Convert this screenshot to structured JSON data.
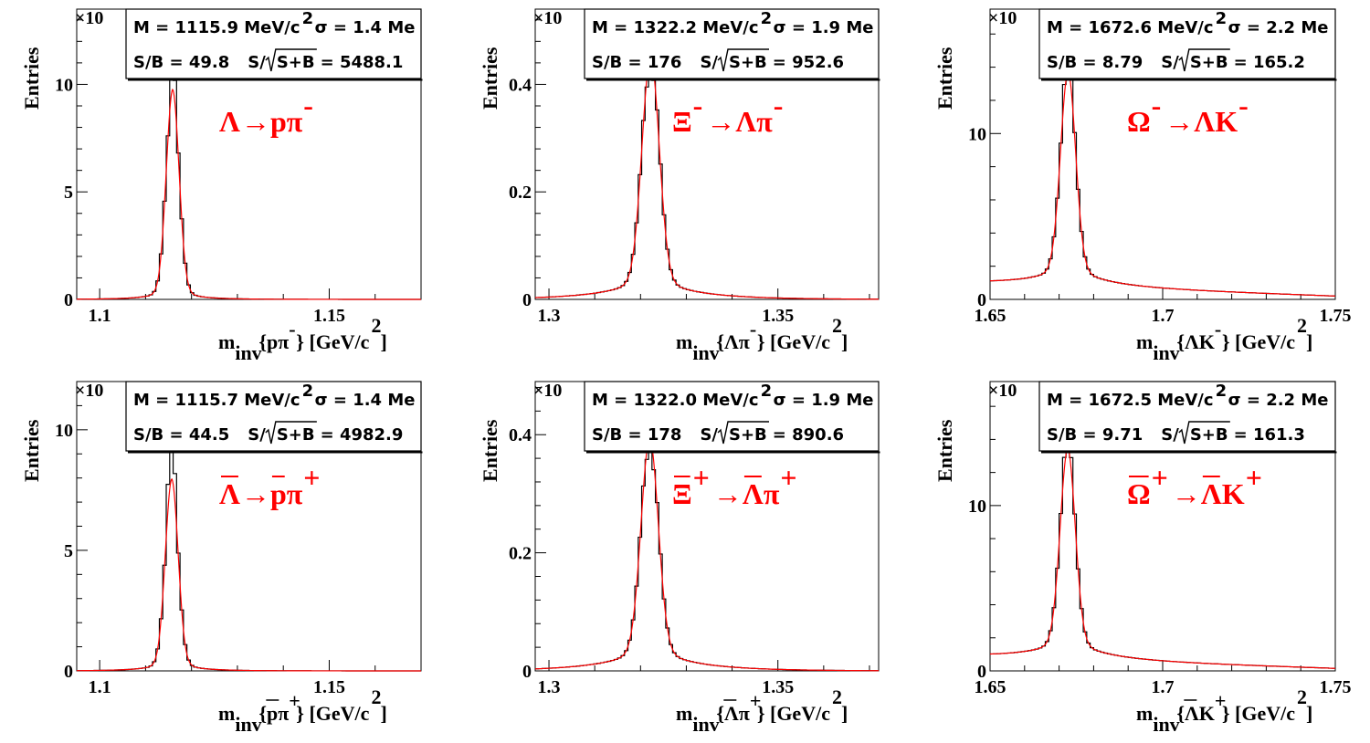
{
  "colors": {
    "fit": "#ff0000",
    "histogram": "#000000",
    "label": "#ff0000"
  },
  "chart_data": [
    {
      "type": "line",
      "y_multiplier": "×10",
      "ylabel": "Entries",
      "xlabel": {
        "main": "m",
        "sub": "inv",
        "arg": "{pπ",
        "arg_sup": "-",
        "tail": "} [GeV/c",
        "tail_sup": "2",
        "close": "]"
      },
      "decay": {
        "lhs": "Λ",
        "lhs_bar": false,
        "lhs_sup": "",
        "arrow": "→",
        "rhs1": "p",
        "rhs1_bar": false,
        "rhs2": "π",
        "rhs2_sup": "-"
      },
      "stats": {
        "mass_label": "M = 1115.9 MeV/c",
        "mass_sup": "2",
        "sigma_label": "σ = 1.4 Me",
        "sb_label": "S/B = 49.8",
        "signif_prefix": "S/",
        "signif_root": "S+B",
        "signif_value": "= 5488.1"
      },
      "xlim": [
        1.095,
        1.17
      ],
      "ylim": [
        0,
        13.5
      ],
      "xticks": [
        1.1,
        1.15
      ],
      "xtick_labels": [
        "1.1",
        "1.15"
      ],
      "yticks": [
        0,
        5,
        10
      ],
      "ytick_labels": [
        "0",
        "5",
        "10"
      ],
      "mass": 1.1159,
      "sigma": 0.0014,
      "peak": 9.1,
      "bg_start": 0.0,
      "bg_end": 0.0,
      "tail": 0.12,
      "hist_peak_ratio": 1.11
    },
    {
      "type": "line",
      "y_multiplier": "×10",
      "ylabel": "Entries",
      "xlabel": {
        "main": "m",
        "sub": "inv",
        "arg": "{Λπ",
        "arg_sup": "-",
        "tail": "} [GeV/c",
        "tail_sup": "2",
        "close": "]"
      },
      "decay": {
        "lhs": "Ξ",
        "lhs_bar": false,
        "lhs_sup": "-",
        "arrow": "→",
        "rhs1": "Λ",
        "rhs1_bar": false,
        "rhs2": "π",
        "rhs2_sup": "-"
      },
      "stats": {
        "mass_label": "M = 1322.2 MeV/c",
        "mass_sup": "2",
        "sigma_label": "σ = 1.9 Me",
        "sb_label": "S/B =  176",
        "signif_prefix": "S/",
        "signif_root": "S+B",
        "signif_value": "= 952.6"
      },
      "xlim": [
        1.297,
        1.372
      ],
      "ylim": [
        0,
        0.54
      ],
      "xticks": [
        1.3,
        1.35
      ],
      "xtick_labels": [
        "1.3",
        "1.35"
      ],
      "yticks": [
        0,
        0.2,
        0.4
      ],
      "ytick_labels": [
        "0",
        "0.2",
        "0.4"
      ],
      "mass": 1.3222,
      "sigma": 0.0019,
      "peak": 0.4,
      "bg_start": 0.0,
      "bg_end": 0.0,
      "tail": 0.03,
      "hist_peak_ratio": 0.96
    },
    {
      "type": "line",
      "y_multiplier": "×10",
      "ylabel": "Entries",
      "xlabel": {
        "main": "m",
        "sub": "inv",
        "arg": "{ΛK",
        "arg_sup": "-",
        "tail": "} [GeV/c",
        "tail_sup": "2",
        "close": "]"
      },
      "decay": {
        "lhs": "Ω",
        "lhs_bar": false,
        "lhs_sup": "-",
        "arrow": "→",
        "rhs1": "Λ",
        "rhs1_bar": false,
        "rhs2": "K",
        "rhs2_sup": "-"
      },
      "stats": {
        "mass_label": "M = 1672.6 MeV/c",
        "mass_sup": "2",
        "sigma_label": "σ = 2.2 Me",
        "sb_label": "S/B = 8.79",
        "signif_prefix": "S/",
        "signif_root": "S+B",
        "signif_value": "= 165.2"
      },
      "xlim": [
        1.65,
        1.75
      ],
      "ylim": [
        0,
        17.5
      ],
      "xticks": [
        1.65,
        1.7,
        1.75
      ],
      "xtick_labels": [
        "1.65",
        "1.7",
        "1.75"
      ],
      "yticks": [
        0,
        10
      ],
      "ytick_labels": [
        "0",
        "10"
      ],
      "mass": 1.6726,
      "sigma": 0.0022,
      "peak": 11.4,
      "bg_start": 0.95,
      "bg_end": 0.2,
      "tail": 0.9,
      "hist_peak_ratio": 1.06
    },
    {
      "type": "line",
      "y_multiplier": "×10",
      "ylabel": "Entries",
      "xlabel": {
        "main": "m",
        "sub": "inv",
        "arg": "{pπ",
        "arg_sup": "+",
        "bar_on_arg": true,
        "tail": "} [GeV/c",
        "tail_sup": "2",
        "close": "]"
      },
      "decay": {
        "lhs": "Λ",
        "lhs_bar": true,
        "lhs_sup": "",
        "arrow": "→",
        "rhs1": "p",
        "rhs1_bar": true,
        "rhs2": "π",
        "rhs2_sup": "+"
      },
      "stats": {
        "mass_label": "M = 1115.7 MeV/c",
        "mass_sup": "2",
        "sigma_label": "σ = 1.4 Me",
        "sb_label": "S/B = 44.5",
        "signif_prefix": "S/",
        "signif_root": "S+B",
        "signif_value": "= 4982.9"
      },
      "xlim": [
        1.095,
        1.17
      ],
      "ylim": [
        0,
        12.0
      ],
      "xticks": [
        1.1,
        1.15
      ],
      "xtick_labels": [
        "1.1",
        "1.15"
      ],
      "yticks": [
        0,
        5,
        10
      ],
      "ytick_labels": [
        "0",
        "5",
        "10"
      ],
      "mass": 1.1157,
      "sigma": 0.0014,
      "peak": 7.4,
      "bg_start": 0.0,
      "bg_end": 0.0,
      "tail": 0.12,
      "hist_peak_ratio": 1.16
    },
    {
      "type": "line",
      "y_multiplier": "×10",
      "ylabel": "Entries",
      "xlabel": {
        "main": "m",
        "sub": "inv",
        "arg": "{Λπ",
        "arg_sup": "+",
        "bar_on_arg": true,
        "tail": "} [GeV/c",
        "tail_sup": "2",
        "close": "]"
      },
      "decay": {
        "lhs": "Ξ",
        "lhs_bar": true,
        "lhs_sup": "+",
        "arrow": "→",
        "rhs1": "Λ",
        "rhs1_bar": true,
        "rhs2": "π",
        "rhs2_sup": "+"
      },
      "stats": {
        "mass_label": "M = 1322.0 MeV/c",
        "mass_sup": "2",
        "sigma_label": "σ = 1.9 Me",
        "sb_label": "S/B =  178",
        "signif_prefix": "S/",
        "signif_root": "S+B",
        "signif_value": "= 890.6"
      },
      "xlim": [
        1.297,
        1.372
      ],
      "ylim": [
        0,
        0.49
      ],
      "xticks": [
        1.3,
        1.35
      ],
      "xtick_labels": [
        "1.3",
        "1.35"
      ],
      "yticks": [
        0,
        0.2,
        0.4
      ],
      "ytick_labels": [
        "0",
        "0.2",
        "0.4"
      ],
      "mass": 1.322,
      "sigma": 0.0019,
      "peak": 0.345,
      "bg_start": 0.0,
      "bg_end": 0.0,
      "tail": 0.03,
      "hist_peak_ratio": 0.96
    },
    {
      "type": "line",
      "y_multiplier": "×10",
      "ylabel": "Entries",
      "xlabel": {
        "main": "m",
        "sub": "inv",
        "arg": "{ΛK",
        "arg_sup": "+",
        "bar_on_arg": true,
        "tail": "} [GeV/c",
        "tail_sup": "2",
        "close": "]"
      },
      "decay": {
        "lhs": "Ω",
        "lhs_bar": true,
        "lhs_sup": "+",
        "arrow": "→",
        "rhs1": "Λ",
        "rhs1_bar": true,
        "rhs2": "K",
        "rhs2_sup": "+"
      },
      "stats": {
        "mass_label": "M = 1672.5 MeV/c",
        "mass_sup": "2",
        "sigma_label": "σ = 2.2 Me",
        "sb_label": "S/B = 9.71",
        "signif_prefix": "S/",
        "signif_root": "S+B",
        "signif_value": "= 161.3"
      },
      "xlim": [
        1.65,
        1.75
      ],
      "ylim": [
        0,
        17.5
      ],
      "xticks": [
        1.65,
        1.7,
        1.75
      ],
      "xtick_labels": [
        "1.65",
        "1.7",
        "1.75"
      ],
      "yticks": [
        0,
        10
      ],
      "ytick_labels": [
        "0",
        "10"
      ],
      "mass": 1.6725,
      "sigma": 0.0022,
      "peak": 11.2,
      "bg_start": 0.85,
      "bg_end": 0.15,
      "tail": 0.9,
      "hist_peak_ratio": 1.06
    }
  ]
}
